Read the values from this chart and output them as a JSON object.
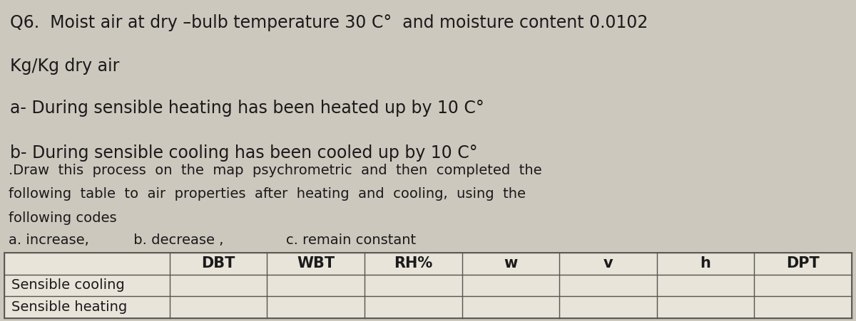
{
  "top_bg": "#cdc8be",
  "bottom_bg": "#dedad2",
  "title_line1": "Q6.  Moist air at dry –bulb temperature 30 C°  and moisture content 0.0102",
  "title_line2": "Kg/Kg dry air",
  "title_line3": "a- During sensible heating has been heated up by 10 C°",
  "title_line4": "b- During sensible cooling has been cooled up by 10 C°",
  "instruction_line1": ".Draw  this  process  on  the  map  psychrometric  and  then  completed  the",
  "instruction_line2": "following  table  to  air  properties  after  heating  and  cooling,  using  the",
  "instruction_line3": "following codes",
  "codes_line": "a. increase,          b. decrease ,              c. remain constant",
  "col_headers": [
    "DBT",
    "WBT",
    "RH%",
    "w",
    "v",
    "h",
    "DPT"
  ],
  "row_labels": [
    "Sensible cooling",
    "Sensible heating"
  ],
  "table_bg": "#e8e4da",
  "text_color": "#1a1a1a",
  "font_size_title": 17,
  "font_size_body": 14,
  "font_size_table_hdr": 15,
  "font_size_table_row": 14,
  "divider_color": "#999990",
  "table_line_color": "#555550"
}
